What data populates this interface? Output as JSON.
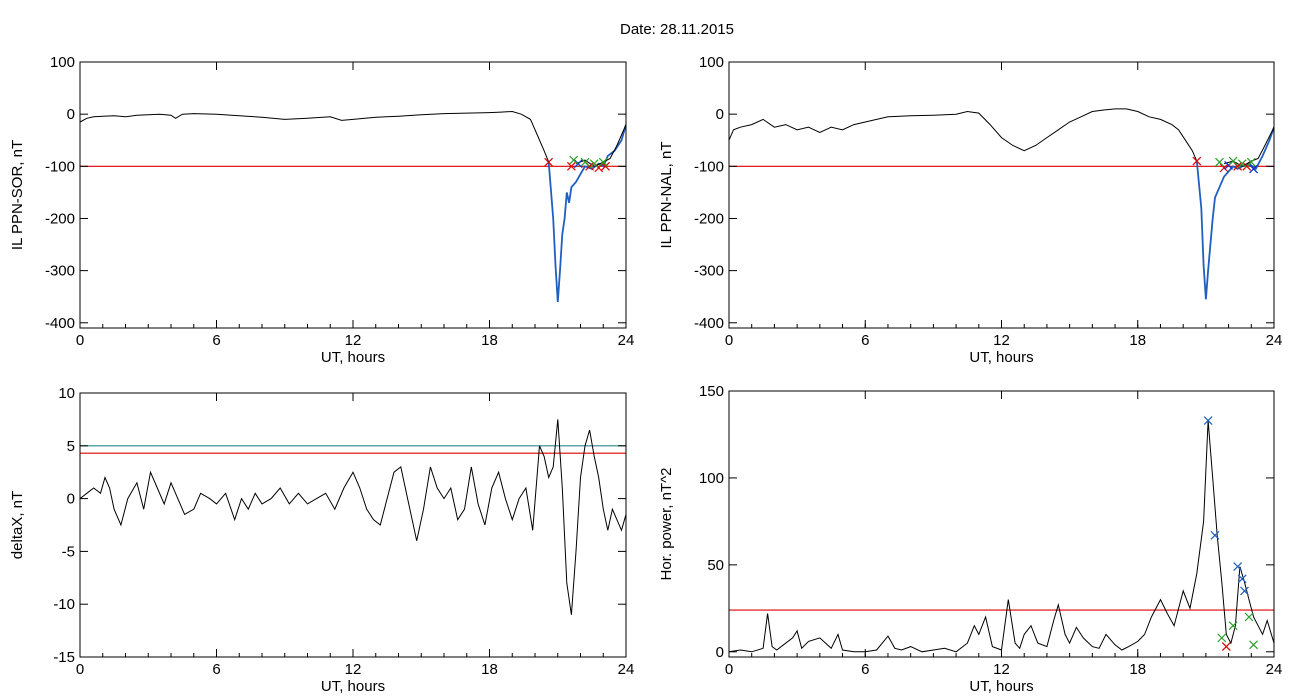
{
  "page": {
    "title": "Date:  28.11.2015"
  },
  "chart_data": [
    {
      "type": "line",
      "xlabel": "UT, hours",
      "ylabel": "IL PPN-SOR, nT",
      "xlim": [
        0,
        24
      ],
      "ylim": [
        -410,
        100
      ],
      "xticks": [
        0,
        6,
        12,
        18,
        24
      ],
      "yticks": [
        100,
        0,
        -100,
        -200,
        -300,
        -400
      ],
      "grid": false,
      "series": [
        {
          "color": "#000000",
          "x": [
            0,
            0.3,
            0.6,
            1,
            1.5,
            2,
            2.5,
            3,
            3.5,
            4,
            4.2,
            4.5,
            5,
            6,
            7,
            8,
            9,
            10,
            11,
            11.5,
            12,
            13,
            14,
            15,
            16,
            17,
            18,
            18.5,
            19,
            19.4,
            19.8,
            20.1,
            20.4,
            20.6
          ],
          "y": [
            -15,
            -8,
            -5,
            -4,
            -3,
            -5,
            -2,
            -1,
            0,
            -2,
            -8,
            0,
            1,
            0,
            -3,
            -6,
            -10,
            -8,
            -5,
            -12,
            -10,
            -6,
            -4,
            -1,
            1,
            2,
            3,
            4,
            5,
            0,
            -10,
            -40,
            -70,
            -92
          ]
        },
        {
          "color": "#1f5fbf",
          "x": [
            20.6,
            20.8,
            20.9,
            21.0,
            21.1,
            21.2,
            21.3,
            21.4,
            21.5,
            21.6,
            21.8,
            22.0,
            22.2,
            22.5,
            22.8,
            23.0,
            23.2,
            23.5,
            23.8,
            24.0
          ],
          "y": [
            -92,
            -200,
            -290,
            -360,
            -300,
            -230,
            -200,
            -150,
            -170,
            -140,
            -130,
            -115,
            -100,
            -105,
            -95,
            -100,
            -80,
            -70,
            -50,
            -20
          ]
        },
        {
          "color": "#000000",
          "x": [
            21.8,
            22.2,
            22.6,
            23.0,
            23.3,
            23.6,
            24.0
          ],
          "y": [
            -95,
            -88,
            -100,
            -92,
            -85,
            -60,
            -20
          ]
        }
      ],
      "threshold_lines": [
        {
          "y": -100,
          "color": "#dd0000"
        }
      ],
      "markers": [
        {
          "x": 20.6,
          "y": -92,
          "color": "#dd0000"
        },
        {
          "x": 21.6,
          "y": -100,
          "color": "#dd0000"
        },
        {
          "x": 21.9,
          "y": -95,
          "color": "#0033cc"
        },
        {
          "x": 22.4,
          "y": -100,
          "color": "#dd0000"
        },
        {
          "x": 22.8,
          "y": -103,
          "color": "#dd0000"
        },
        {
          "x": 23.1,
          "y": -100,
          "color": "#dd0000"
        },
        {
          "x": 21.7,
          "y": -88,
          "color": "#2aa02a"
        },
        {
          "x": 22.2,
          "y": -92,
          "color": "#2aa02a"
        },
        {
          "x": 22.6,
          "y": -95,
          "color": "#2aa02a"
        },
        {
          "x": 23.0,
          "y": -92,
          "color": "#2aa02a"
        }
      ]
    },
    {
      "type": "line",
      "xlabel": "UT, hours",
      "ylabel": "IL PPN-NAL, nT",
      "xlim": [
        0,
        24
      ],
      "ylim": [
        -410,
        100
      ],
      "xticks": [
        0,
        6,
        12,
        18,
        24
      ],
      "yticks": [
        100,
        0,
        -100,
        -200,
        -300,
        -400
      ],
      "grid": false,
      "series": [
        {
          "color": "#000000",
          "x": [
            0,
            0.2,
            0.5,
            1,
            1.5,
            2,
            2.5,
            3,
            3.5,
            4,
            4.5,
            5,
            5.5,
            6,
            6.5,
            7,
            8,
            9,
            10,
            10.5,
            11,
            11.5,
            12,
            12.5,
            13,
            13.5,
            14,
            14.5,
            15,
            15.5,
            16,
            16.5,
            17,
            17.5,
            18,
            18.5,
            19,
            19.5,
            19.8,
            20.1,
            20.4,
            20.6
          ],
          "y": [
            -50,
            -30,
            -25,
            -20,
            -10,
            -25,
            -20,
            -30,
            -25,
            -35,
            -25,
            -30,
            -20,
            -15,
            -10,
            -5,
            -3,
            -2,
            0,
            5,
            2,
            -20,
            -45,
            -60,
            -70,
            -60,
            -45,
            -30,
            -15,
            -5,
            5,
            8,
            10,
            10,
            5,
            -5,
            -10,
            -20,
            -30,
            -50,
            -70,
            -90
          ]
        },
        {
          "color": "#1f5fbf",
          "x": [
            20.6,
            20.8,
            20.9,
            21.0,
            21.1,
            21.2,
            21.3,
            21.4,
            21.6,
            21.8,
            22.0,
            22.2,
            22.4,
            22.6,
            22.9,
            23.2,
            23.5,
            23.8,
            24.0
          ],
          "y": [
            -90,
            -180,
            -290,
            -355,
            -300,
            -250,
            -200,
            -160,
            -140,
            -120,
            -110,
            -100,
            -105,
            -100,
            -95,
            -105,
            -80,
            -50,
            -25
          ]
        },
        {
          "color": "#000000",
          "x": [
            21.8,
            22.2,
            22.6,
            23.0,
            23.3,
            23.6,
            24.0
          ],
          "y": [
            -95,
            -90,
            -100,
            -90,
            -85,
            -60,
            -25
          ]
        }
      ],
      "threshold_lines": [
        {
          "y": -100,
          "color": "#dd0000"
        }
      ],
      "markers": [
        {
          "x": 20.6,
          "y": -90,
          "color": "#dd0000"
        },
        {
          "x": 21.8,
          "y": -103,
          "color": "#dd0000"
        },
        {
          "x": 22.0,
          "y": -98,
          "color": "#0033cc"
        },
        {
          "x": 22.4,
          "y": -100,
          "color": "#dd0000"
        },
        {
          "x": 22.8,
          "y": -100,
          "color": "#dd0000"
        },
        {
          "x": 23.1,
          "y": -105,
          "color": "#0033cc"
        },
        {
          "x": 21.6,
          "y": -92,
          "color": "#2aa02a"
        },
        {
          "x": 22.2,
          "y": -90,
          "color": "#2aa02a"
        },
        {
          "x": 22.6,
          "y": -95,
          "color": "#2aa02a"
        },
        {
          "x": 23.0,
          "y": -92,
          "color": "#2aa02a"
        }
      ]
    },
    {
      "type": "line",
      "xlabel": "UT, hours",
      "ylabel": "deltaX, nT",
      "xlim": [
        0,
        24
      ],
      "ylim": [
        -15,
        10
      ],
      "xticks": [
        0,
        6,
        12,
        18,
        24
      ],
      "yticks": [
        10,
        5,
        0,
        -5,
        -10,
        -15
      ],
      "grid": false,
      "series": [
        {
          "color": "#000000",
          "x": [
            0,
            0.3,
            0.6,
            0.9,
            1.1,
            1.3,
            1.5,
            1.8,
            2.1,
            2.5,
            2.8,
            3.1,
            3.4,
            3.7,
            4.0,
            4.3,
            4.6,
            5.0,
            5.3,
            5.7,
            6.0,
            6.4,
            6.8,
            7.1,
            7.4,
            7.7,
            8.0,
            8.4,
            8.8,
            9.2,
            9.6,
            10.0,
            10.4,
            10.8,
            11.2,
            11.6,
            12.0,
            12.3,
            12.6,
            12.9,
            13.2,
            13.5,
            13.8,
            14.1,
            14.4,
            14.8,
            15.1,
            15.4,
            15.7,
            16.0,
            16.3,
            16.6,
            16.9,
            17.2,
            17.5,
            17.8,
            18.1,
            18.4,
            18.7,
            19.0,
            19.3,
            19.6,
            19.9,
            20.2,
            20.4,
            20.6,
            20.8,
            21.0,
            21.2,
            21.4,
            21.6,
            21.8,
            22.0,
            22.2,
            22.4,
            22.6,
            22.8,
            23.0,
            23.2,
            23.4,
            23.6,
            23.8,
            24.0
          ],
          "y": [
            0,
            0.5,
            1,
            0.5,
            2,
            1,
            -1,
            -2.5,
            0,
            1.5,
            -1,
            2.5,
            1,
            -0.5,
            1.5,
            0,
            -1.5,
            -1,
            0.5,
            0,
            -0.5,
            0.5,
            -2,
            0,
            -1,
            0.5,
            -0.5,
            0,
            1,
            -0.5,
            0.5,
            -0.5,
            0,
            0.5,
            -1,
            1,
            2.5,
            1,
            -1,
            -2,
            -2.5,
            0,
            2.5,
            3,
            0,
            -4,
            -1,
            3,
            1,
            0,
            1,
            -2,
            -1,
            3,
            -0.5,
            -2.5,
            1,
            2.5,
            0,
            -2,
            0,
            1,
            -3,
            5,
            4,
            2,
            3,
            7.5,
            1,
            -8,
            -11,
            -5,
            2,
            5,
            6.5,
            4,
            2,
            -1,
            -3,
            -1,
            -2,
            -3,
            -1.5
          ]
        }
      ],
      "threshold_lines": [
        {
          "y": 5.0,
          "color": "#2a8a8a"
        },
        {
          "y": 4.3,
          "color": "#dd0000"
        }
      ],
      "markers": []
    },
    {
      "type": "line",
      "xlabel": "UT, hours",
      "ylabel": "Hor. power, nT^2",
      "xlim": [
        0,
        24
      ],
      "ylim": [
        -3,
        150
      ],
      "xticks": [
        0,
        6,
        12,
        18,
        24
      ],
      "yticks": [
        150,
        100,
        50,
        0
      ],
      "grid": false,
      "series": [
        {
          "color": "#000000",
          "x": [
            0,
            0.5,
            1,
            1.5,
            1.7,
            1.9,
            2.1,
            2.4,
            2.8,
            3.0,
            3.2,
            3.5,
            4.0,
            4.5,
            4.8,
            5.0,
            5.5,
            6.0,
            6.5,
            7.0,
            7.3,
            7.6,
            8.0,
            8.5,
            9.0,
            9.5,
            10.0,
            10.5,
            10.8,
            11.0,
            11.3,
            11.6,
            12.0,
            12.3,
            12.6,
            12.8,
            13.0,
            13.3,
            13.6,
            14.0,
            14.3,
            14.5,
            14.8,
            15.0,
            15.3,
            15.6,
            16.0,
            16.3,
            16.6,
            17.0,
            17.3,
            17.6,
            18.0,
            18.3,
            18.6,
            19.0,
            19.3,
            19.6,
            20.0,
            20.3,
            20.6,
            20.9,
            21.1,
            21.3,
            21.5,
            21.7,
            21.9,
            22.1,
            22.3,
            22.5,
            22.7,
            22.9,
            23.1,
            23.3,
            23.5,
            23.7,
            24.0
          ],
          "y": [
            0,
            1,
            0,
            2,
            22,
            3,
            1,
            4,
            8,
            12,
            2,
            6,
            8,
            2,
            10,
            1,
            0,
            0,
            1,
            9,
            2,
            1,
            3,
            0,
            1,
            2,
            0,
            5,
            15,
            10,
            20,
            3,
            1,
            30,
            5,
            2,
            10,
            15,
            5,
            3,
            18,
            27,
            10,
            5,
            14,
            8,
            3,
            2,
            10,
            4,
            1,
            3,
            6,
            10,
            20,
            30,
            22,
            15,
            35,
            25,
            45,
            75,
            133,
            100,
            67,
            40,
            10,
            5,
            15,
            49,
            40,
            30,
            20,
            15,
            10,
            18,
            5
          ]
        }
      ],
      "threshold_lines": [
        {
          "y": 24,
          "color": "#dd0000"
        }
      ],
      "markers": [
        {
          "x": 21.1,
          "y": 133,
          "color": "#1f5fbf"
        },
        {
          "x": 21.4,
          "y": 67,
          "color": "#1f5fbf"
        },
        {
          "x": 22.4,
          "y": 49,
          "color": "#1f5fbf"
        },
        {
          "x": 22.6,
          "y": 42,
          "color": "#1f5fbf"
        },
        {
          "x": 22.7,
          "y": 35,
          "color": "#1f5fbf"
        },
        {
          "x": 21.7,
          "y": 8,
          "color": "#2aa02a"
        },
        {
          "x": 22.2,
          "y": 15,
          "color": "#2aa02a"
        },
        {
          "x": 22.9,
          "y": 20,
          "color": "#2aa02a"
        },
        {
          "x": 21.9,
          "y": 3,
          "color": "#dd0000"
        },
        {
          "x": 23.1,
          "y": 4,
          "color": "#2aa02a"
        }
      ]
    }
  ]
}
